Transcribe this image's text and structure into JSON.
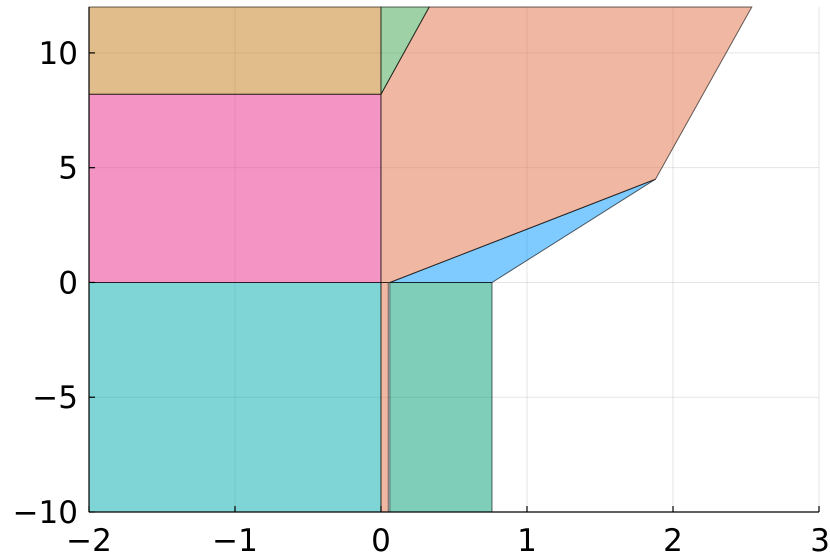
{
  "chart_data": {
    "type": "area",
    "title": "",
    "xlabel": "",
    "ylabel": "",
    "xlim": [
      -2,
      3
    ],
    "ylim": [
      -10,
      12
    ],
    "xticks": [
      -2,
      -1,
      0,
      1,
      2,
      3
    ],
    "yticks": [
      -10,
      -5,
      0,
      5,
      10
    ],
    "xtick_labels": [
      "−2",
      "−1",
      "0",
      "1",
      "2",
      "3"
    ],
    "ytick_labels": [
      "−10",
      "−5",
      "0",
      "5",
      "10"
    ],
    "grid": true,
    "regions": [
      {
        "color": "#00a9ad",
        "points": [
          [
            -2,
            -10
          ],
          [
            0,
            -10
          ],
          [
            0,
            0
          ],
          [
            -2,
            0
          ]
        ]
      },
      {
        "color": "#e26f46",
        "points": [
          [
            0,
            -10
          ],
          [
            0.05,
            -10
          ],
          [
            0.05,
            0
          ],
          [
            0,
            0
          ]
        ]
      },
      {
        "color": "#009e73",
        "points": [
          [
            0.06,
            -10
          ],
          [
            0.76,
            -10
          ],
          [
            0.76,
            0
          ],
          [
            0.06,
            0
          ]
        ]
      },
      {
        "color": "#e7298a",
        "points": [
          [
            -2,
            0
          ],
          [
            0,
            0
          ],
          [
            0,
            8.2
          ],
          [
            -2,
            8.2
          ]
        ]
      },
      {
        "color": "#0096ff",
        "points": [
          [
            0.06,
            0
          ],
          [
            0.76,
            0
          ],
          [
            1.88,
            4.5
          ]
        ]
      },
      {
        "color": "#e26f46",
        "points": [
          [
            0,
            0
          ],
          [
            0.06,
            0
          ],
          [
            1.88,
            4.5
          ],
          [
            2.54,
            12
          ],
          [
            0.33,
            12
          ],
          [
            0,
            8.2
          ]
        ]
      },
      {
        "color": "#c27b17",
        "points": [
          [
            -2,
            8.2
          ],
          [
            0,
            8.2
          ],
          [
            0,
            12
          ],
          [
            -2,
            12
          ]
        ]
      },
      {
        "color": "#3da44d",
        "points": [
          [
            0,
            8.2
          ],
          [
            0.33,
            12
          ],
          [
            0,
            12
          ]
        ]
      }
    ]
  }
}
